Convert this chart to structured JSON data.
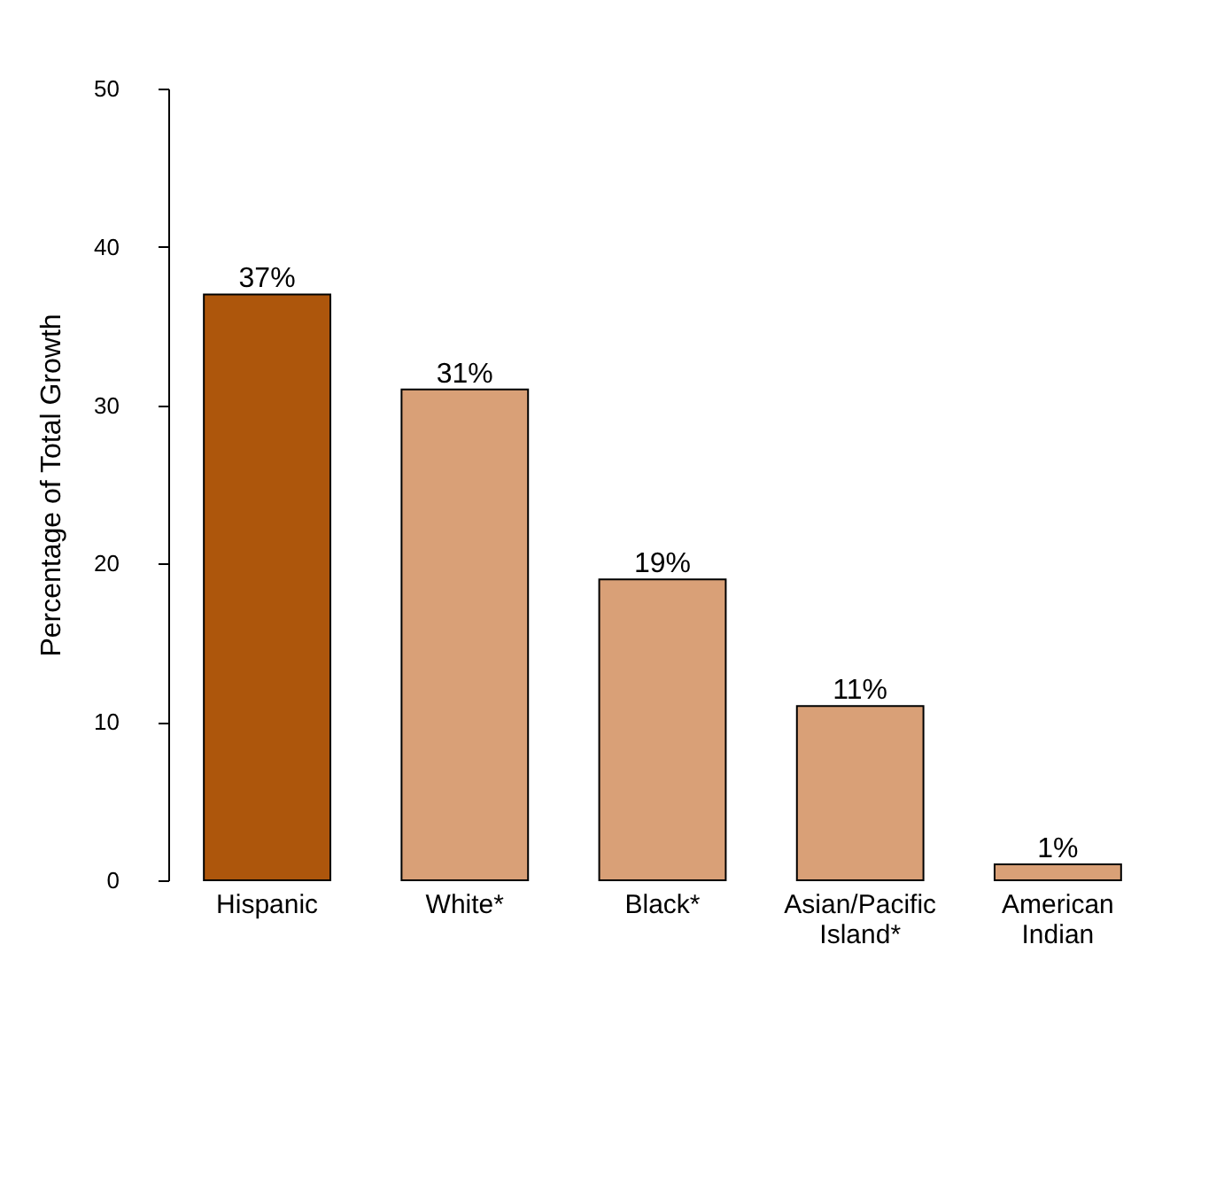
{
  "chart_data": {
    "type": "bar",
    "ylabel": "Percentage of Total Growth",
    "categories": [
      "Hispanic",
      "White*",
      "Black*",
      "Asian/Pacific Island*",
      "American Indian"
    ],
    "values": [
      37,
      31,
      19,
      11,
      1
    ],
    "colors": [
      "#ad560c",
      "#d9a077",
      "#d9a077",
      "#d9a077",
      "#d9a077"
    ],
    "value_labels": [
      "37%",
      "31%",
      "19%",
      "11%",
      "1%"
    ],
    "ylim": [
      0,
      50
    ],
    "yticks": [
      0,
      10,
      20,
      30,
      40,
      50
    ],
    "grid": false
  }
}
